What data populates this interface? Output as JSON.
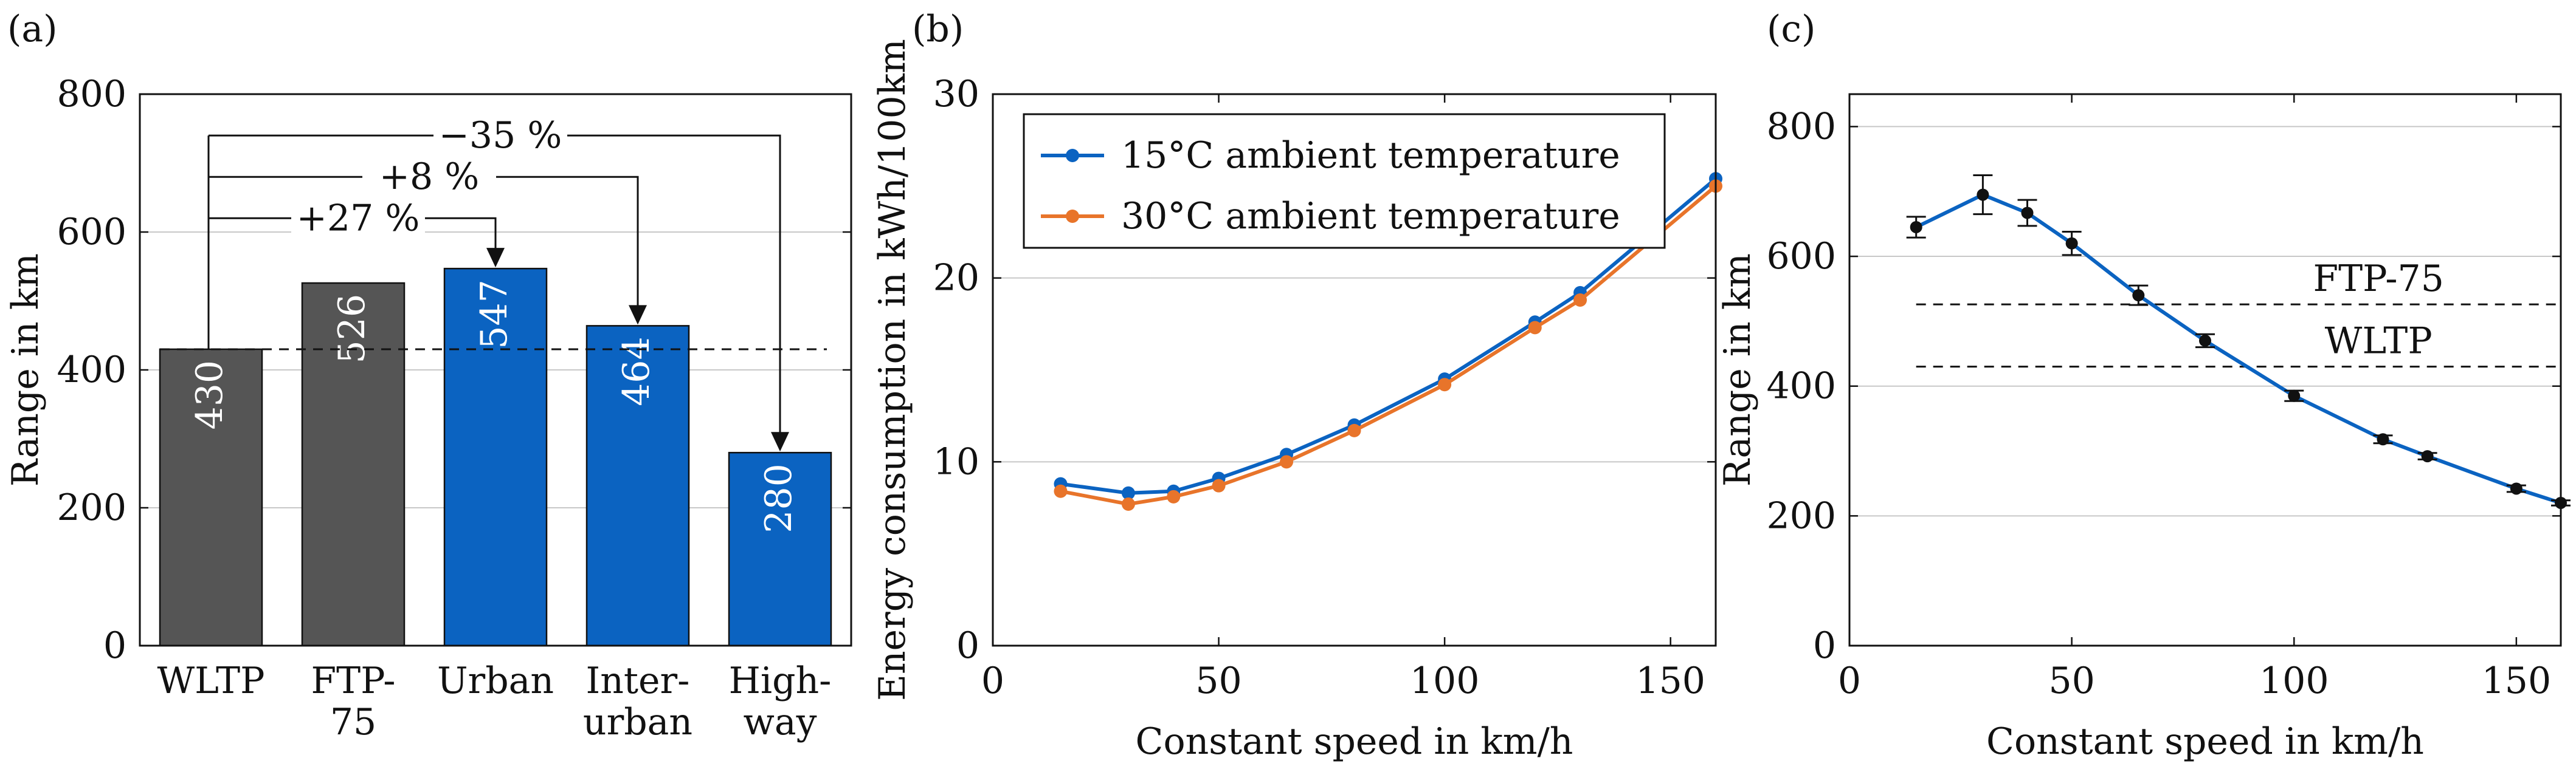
{
  "chart_data": [
    {
      "panel": "(a)",
      "type": "bar",
      "categories": [
        "WLTP",
        "FTP-75",
        "Urban",
        "Inter-urban",
        "High-way"
      ],
      "category_labels": [
        [
          "WLTP"
        ],
        [
          "FTP-",
          "75"
        ],
        [
          "Urban"
        ],
        [
          "Inter-",
          "urban"
        ],
        [
          "High-",
          "way"
        ]
      ],
      "values": [
        430,
        526,
        547,
        464,
        280
      ],
      "value_labels": [
        "430",
        "526",
        "547",
        "464",
        "280"
      ],
      "bar_colors": [
        "#555555",
        "#555555",
        "#0b63c1",
        "#0b63c1",
        "#0b63c1"
      ],
      "ylabel": "Range in km",
      "ylim": [
        0,
        800
      ],
      "yticks": [
        0,
        200,
        400,
        600,
        800
      ],
      "reference_line": 430,
      "annotations": [
        {
          "text": "+27 %",
          "from": "WLTP",
          "to": "Urban",
          "level": 620
        },
        {
          "text": "+8 %",
          "from": "WLTP",
          "to": "Inter-urban",
          "level": 680
        },
        {
          "text": "−35 %",
          "from": "WLTP",
          "to": "High-way",
          "level": 740
        }
      ],
      "grid": true
    },
    {
      "panel": "(b)",
      "type": "line",
      "xlabel": "Constant speed in km/h",
      "ylabel": "Energy consumption in kWh/100km",
      "xlim": [
        0,
        160
      ],
      "ylim": [
        0,
        30
      ],
      "xticks": [
        0,
        50,
        100,
        150
      ],
      "yticks": [
        0,
        10,
        20,
        30
      ],
      "legend_position": "top-left",
      "grid": true,
      "series": [
        {
          "name": "15°C ambient temperature",
          "color": "#0b63c1",
          "x": [
            15,
            30,
            40,
            50,
            65,
            80,
            100,
            120,
            130,
            160
          ],
          "y": [
            8.8,
            8.3,
            8.4,
            9.1,
            10.4,
            12.0,
            14.5,
            17.6,
            19.2,
            25.4
          ]
        },
        {
          "name": "30°C ambient temperature",
          "color": "#e8742a",
          "x": [
            15,
            30,
            40,
            50,
            65,
            80,
            100,
            120,
            130,
            160
          ],
          "y": [
            8.4,
            7.7,
            8.1,
            8.7,
            10.0,
            11.7,
            14.2,
            17.3,
            18.8,
            25.0
          ]
        }
      ]
    },
    {
      "panel": "(c)",
      "type": "line",
      "xlabel": "Constant speed in km/h",
      "ylabel": "Range in km",
      "xlim": [
        0,
        160
      ],
      "ylim": [
        0,
        850
      ],
      "xticks": [
        0,
        50,
        100,
        150
      ],
      "yticks": [
        0,
        200,
        400,
        600,
        800
      ],
      "grid": true,
      "series": [
        {
          "color": "#0b63c1",
          "x": [
            15,
            30,
            40,
            50,
            65,
            80,
            100,
            120,
            130,
            150,
            160
          ],
          "y": [
            645,
            695,
            667,
            620,
            540,
            470,
            385,
            318,
            292,
            242,
            220
          ],
          "error": [
            16,
            30,
            20,
            18,
            15,
            10,
            8,
            6,
            5,
            5,
            4
          ]
        }
      ],
      "reference_lines": [
        {
          "label": "FTP-75",
          "value": 526
        },
        {
          "label": "WLTP",
          "value": 430
        }
      ]
    }
  ]
}
